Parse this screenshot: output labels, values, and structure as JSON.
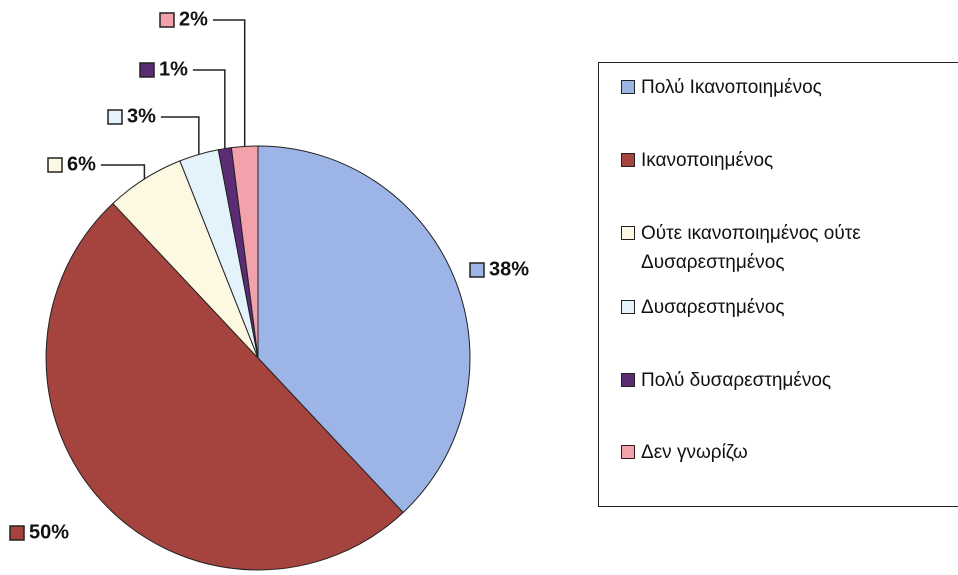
{
  "chart_data": {
    "type": "pie",
    "categories": [
      "Πολύ Ικανοποιημένος",
      "Ικανοποιημένος",
      "Ούτε ικανοποιημένος ούτε Δυσαρεστημένος",
      "Δυσαρεστημένος",
      "Πολύ δυσαρεστημένος",
      "Δεν γνωρίζω"
    ],
    "values": [
      38,
      50,
      6,
      3,
      1,
      2
    ],
    "value_labels": [
      "38%",
      "50%",
      "6%",
      "3%",
      "1%",
      "2%"
    ],
    "colors": [
      "#9db4e6",
      "#a5443f",
      "#fdf8e2",
      "#e3f2fb",
      "#5b2c73",
      "#f3a1ab"
    ],
    "legend": "right"
  }
}
